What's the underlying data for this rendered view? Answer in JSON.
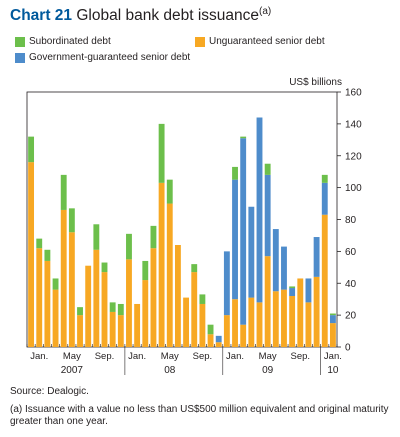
{
  "title": {
    "number": "Chart 21",
    "text": "Global bank debt issuance",
    "note_marker": "(a)"
  },
  "legend": [
    {
      "label": "Subordinated debt",
      "color": "#6cbf4b"
    },
    {
      "label": "Unguaranteed senior debt",
      "color": "#f7a823"
    },
    {
      "label": "Government-guaranteed senior debt",
      "color": "#4e8ccb"
    }
  ],
  "unit_label": "US$ billions",
  "source": "Source: Dealogic.",
  "footnote": "(a) Issuance with a value no less than US$500 million equivalent and original maturity greater than one year.",
  "chart_data": {
    "type": "bar",
    "stacked": true,
    "ylim": [
      0,
      160
    ],
    "y_ticks": [
      0,
      20,
      40,
      60,
      80,
      100,
      120,
      140,
      160
    ],
    "y_axis_side": "right",
    "x_tick_labels": [
      {
        "label": "Jan.",
        "index": 1
      },
      {
        "label": "May",
        "index": 5
      },
      {
        "label": "Sep.",
        "index": 9
      },
      {
        "label": "Jan.",
        "index": 13
      },
      {
        "label": "May",
        "index": 17
      },
      {
        "label": "Sep.",
        "index": 21
      },
      {
        "label": "Jan.",
        "index": 25
      },
      {
        "label": "May",
        "index": 29
      },
      {
        "label": "Sep.",
        "index": 33
      },
      {
        "label": "Jan.",
        "index": 37
      }
    ],
    "year_labels": [
      {
        "label": "2007",
        "index": 5
      },
      {
        "label": "08",
        "index": 17
      },
      {
        "label": "09",
        "index": 29
      },
      {
        "label": "10",
        "index": 37
      }
    ],
    "series": [
      {
        "name": "Unguaranteed senior debt",
        "color": "#f7a823",
        "values": [
          116,
          62,
          54,
          36,
          86,
          72,
          20,
          51,
          61,
          47,
          22,
          20,
          55,
          27,
          42,
          62,
          103,
          90,
          64,
          31,
          47,
          27,
          8,
          3,
          20,
          30,
          14,
          31,
          28,
          57,
          35,
          36,
          32,
          43,
          28,
          44,
          83,
          15
        ]
      },
      {
        "name": "Government-guaranteed senior debt",
        "color": "#4e8ccb",
        "values": [
          0,
          0,
          0,
          0,
          0,
          0,
          0,
          0,
          0,
          0,
          0,
          0,
          0,
          0,
          0,
          0,
          0,
          0,
          0,
          0,
          0,
          0,
          0,
          4,
          40,
          75,
          117,
          57,
          116,
          51,
          39,
          27,
          5,
          0,
          15,
          25,
          20,
          5
        ]
      },
      {
        "name": "Subordinated debt",
        "color": "#6cbf4b",
        "values": [
          16,
          6,
          7,
          7,
          22,
          15,
          5,
          0,
          16,
          6,
          6,
          7,
          16,
          0,
          12,
          14,
          37,
          15,
          0,
          0,
          5,
          6,
          6,
          0,
          0,
          8,
          1,
          0,
          0,
          7,
          0,
          0,
          1,
          0,
          0,
          0,
          5,
          1
        ]
      }
    ]
  }
}
